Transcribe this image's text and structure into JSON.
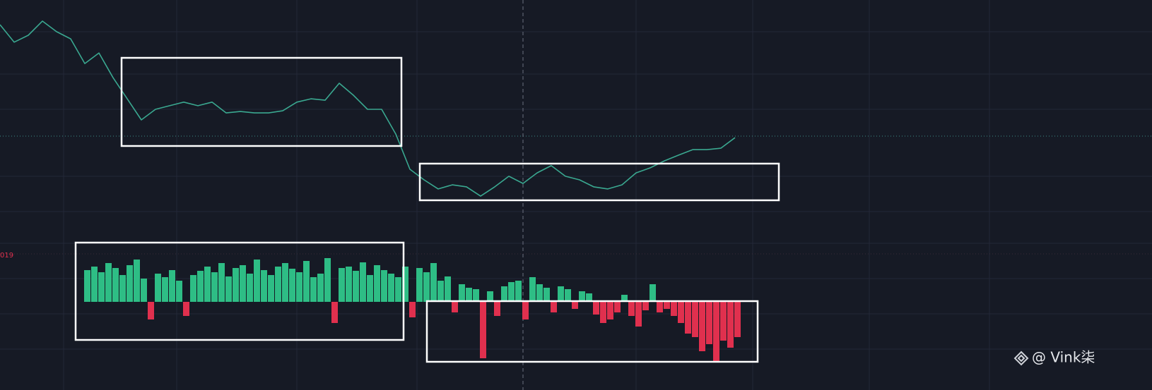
{
  "chart_data": [
    {
      "type": "line",
      "x": [
        0,
        1,
        2,
        3,
        4,
        5,
        6,
        7,
        8,
        9,
        10,
        11,
        12,
        13,
        14,
        15,
        16,
        17,
        18,
        19,
        20,
        21,
        22,
        23,
        24,
        25,
        26,
        27,
        28,
        29,
        30,
        31,
        32,
        33,
        34,
        35,
        36,
        37,
        38,
        39,
        40,
        41,
        42,
        43,
        44,
        45,
        46,
        47,
        48,
        49,
        50,
        51,
        52
      ],
      "xlim": [
        0,
        81.5
      ],
      "series": [
        {
          "color": "#3aa890",
          "values": [
            89.7,
            82.4,
            85.3,
            91.2,
            86.8,
            83.8,
            73.5,
            77.9,
            67.6,
            58.8,
            50.0,
            54.4,
            55.9,
            57.4,
            55.9,
            57.4,
            52.9,
            53.5,
            52.9,
            52.9,
            53.8,
            57.4,
            58.8,
            58.2,
            65.3,
            60.3,
            54.4,
            54.4,
            44.1,
            29.4,
            25.0,
            21.2,
            22.9,
            22.1,
            18.2,
            22.1,
            26.5,
            23.5,
            27.9,
            30.9,
            26.5,
            25.0,
            22.1,
            21.2,
            22.9,
            27.9,
            30.0,
            32.9,
            35.3,
            37.6,
            37.6,
            38.2,
            42.6
          ]
        }
      ],
      "ylim": [
        0,
        100
      ]
    },
    {
      "type": "bar",
      "label": "019",
      "x": [
        0,
        1,
        2,
        3,
        4,
        5,
        6,
        7,
        8,
        9,
        10,
        11,
        12,
        13,
        14,
        15,
        16,
        17,
        18,
        19,
        20,
        21,
        22,
        23,
        24,
        25,
        26,
        27,
        28,
        29,
        30,
        31,
        32,
        33,
        34,
        35,
        36,
        37,
        38,
        39,
        40,
        41,
        42,
        43,
        44,
        45,
        46,
        47,
        48,
        49,
        50,
        51,
        52,
        53,
        54,
        55,
        56,
        57,
        58,
        59,
        60,
        61,
        62,
        63,
        64,
        65,
        66,
        67,
        68,
        69,
        70,
        71,
        72,
        73,
        74,
        75,
        76,
        77,
        78,
        79,
        80,
        81,
        82,
        83,
        84,
        85,
        86,
        87,
        88,
        89,
        90,
        91,
        92
      ],
      "xlim": [
        -12.3,
        150.7
      ],
      "up_color": "#2ebd85",
      "down_color": "#e0304e",
      "values": [
        45,
        50,
        42,
        55,
        48,
        38,
        52,
        60,
        33,
        -25,
        40,
        35,
        45,
        30,
        -20,
        38,
        44,
        50,
        42,
        55,
        36,
        48,
        52,
        40,
        60,
        45,
        38,
        50,
        55,
        47,
        42,
        58,
        35,
        40,
        62,
        -30,
        48,
        50,
        44,
        56,
        38,
        52,
        45,
        40,
        35,
        50,
        -22,
        48,
        42,
        55,
        30,
        36,
        -15,
        25,
        20,
        18,
        -80,
        15,
        -20,
        22,
        28,
        30,
        -25,
        35,
        25,
        20,
        -15,
        22,
        18,
        -10,
        15,
        12,
        -18,
        -30,
        -25,
        -15,
        10,
        -20,
        -35,
        -12,
        25,
        -15,
        -10,
        -20,
        -30,
        -45,
        -50,
        -70,
        -60,
        -85,
        -55,
        -65,
        -50
      ],
      "ylim": [
        -102,
        88
      ]
    }
  ],
  "watermark": "@ Vink柒"
}
